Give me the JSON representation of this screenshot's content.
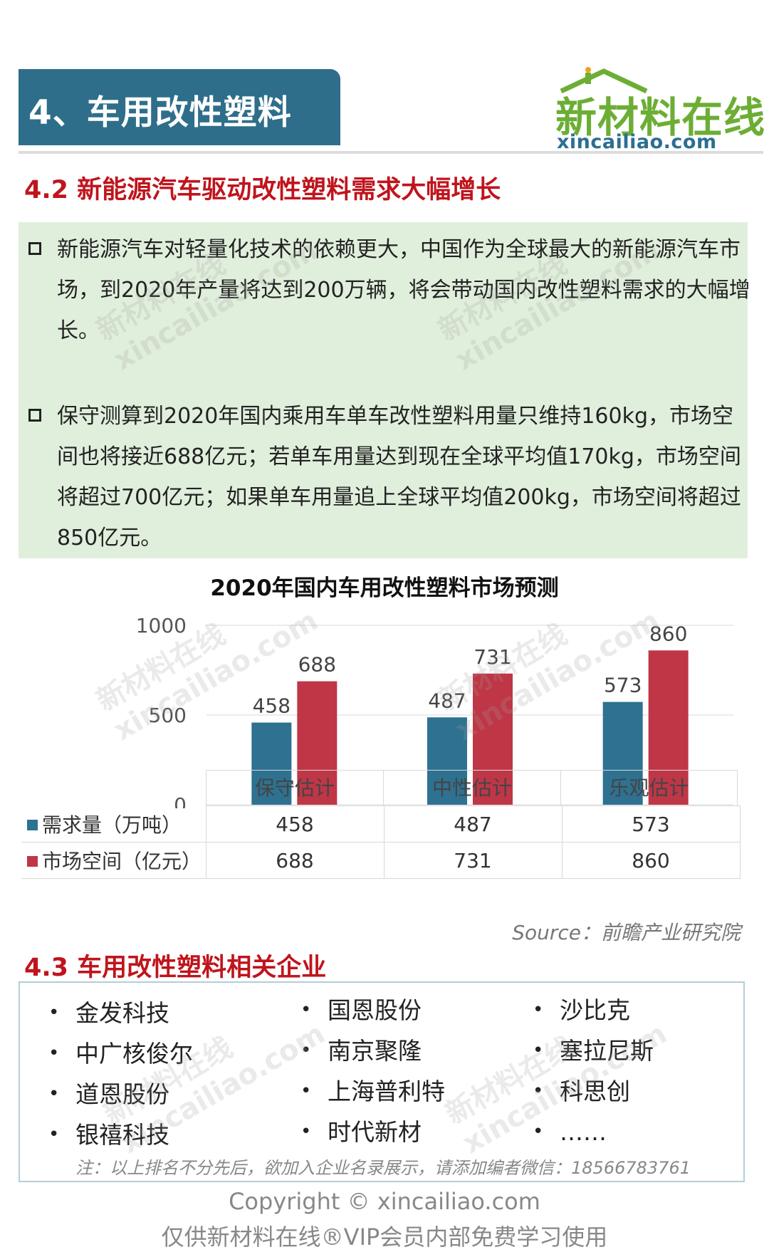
{
  "header": {
    "title": "4、车用改性塑料",
    "logo_main": "新材料在线",
    "logo_sub": "xincailiao.com"
  },
  "section_42": {
    "title": "4.2 新能源汽车驱动改性塑料需求大幅增长",
    "bullets": [
      "新能源汽车对轻量化技术的依赖更大，中国作为全球最大的新能源汽车市场，到2020年产量将达到200万辆，将会带动国内改性塑料需求的大幅增长。",
      "保守测算到2020年国内乘用车单车改性塑料用量只维持160kg，市场空间也将接近688亿元；若单车用量达到现在全球平均值170kg，市场空间将超过700亿元；如果单车用量追上全球平均值200kg，市场空间将超过850亿元。"
    ]
  },
  "chart_data": {
    "type": "bar",
    "title": "2020年国内车用改性塑料市场预测",
    "categories": [
      "保守估计",
      "中性估计",
      "乐观估计"
    ],
    "series": [
      {
        "name": "需求量（万吨）",
        "values": [
          458,
          487,
          573
        ],
        "color": "#2e7191"
      },
      {
        "name": "市场空间（亿元）",
        "values": [
          688,
          731,
          860
        ],
        "color": "#bf3647"
      }
    ],
    "ylim": [
      0,
      1000
    ],
    "yticks": [
      0,
      500,
      1000
    ],
    "legend": "data-table"
  },
  "source": "Source：前瞻产业研究院",
  "section_43": {
    "title": "4.3 车用改性塑料相关企业",
    "col1": [
      "金发科技",
      "中广核俊尔",
      "道恩股份",
      "银禧科技"
    ],
    "col2": [
      "国恩股份",
      "南京聚隆",
      "上海普利特",
      "时代新材"
    ],
    "col3": [
      "沙比克",
      "塞拉尼斯",
      "科思创",
      "……"
    ],
    "note": "注：以上排名不分先后，欲加入企业名录展示，请添加编者微信：18566783761",
    "bullet": "•"
  },
  "footer": {
    "copyright": "Copyright © xincailiao.com",
    "notice": "仅供新材料在线®VIP会员内部免费学习使用"
  },
  "watermark": {
    "cn": "新材料在线",
    "en": "xincailiao.com"
  }
}
